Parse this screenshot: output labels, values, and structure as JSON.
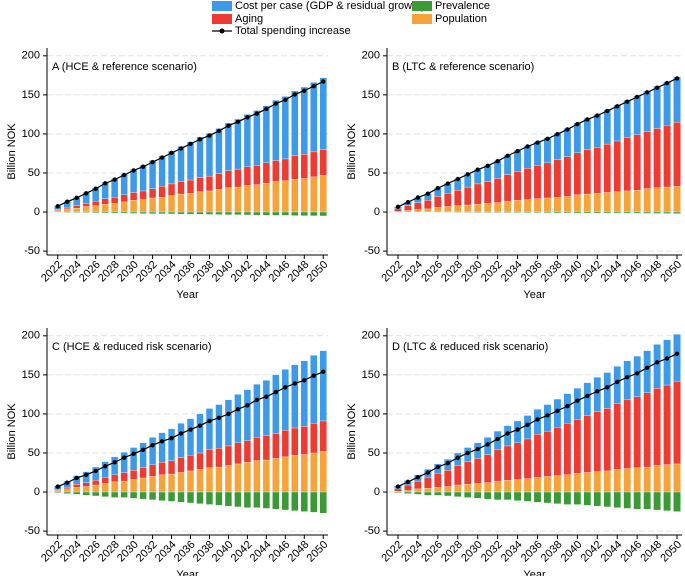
{
  "chart_data": [
    {
      "type": "bar",
      "stacked": true,
      "title": "A (HCE & reference scenario)",
      "xlabel": "Year",
      "ylabel": "Billion NOK",
      "categories": [
        "2022",
        null,
        "2024",
        null,
        "2026",
        null,
        "2028",
        null,
        "2030",
        null,
        "2032",
        null,
        "2034",
        null,
        "2036",
        null,
        "2038",
        null,
        "2040",
        null,
        "2042",
        null,
        "2044",
        null,
        "2046",
        null,
        "2048",
        null,
        "2050"
      ],
      "ylim": [
        -55,
        210
      ],
      "yticks": [
        -50,
        0,
        50,
        100,
        150,
        200
      ],
      "grid": true,
      "series": [
        {
          "name": "Cost per case (GDP & residual growth)",
          "color": "#3d9ae8",
          "values": [
            5,
            8,
            11,
            14,
            17,
            21,
            24,
            27,
            30,
            33,
            36,
            39,
            42,
            45,
            49,
            52,
            55,
            58,
            61,
            64,
            67,
            70,
            73,
            77,
            80,
            83,
            86,
            89,
            92
          ]
        },
        {
          "name": "Prevalence",
          "color": "#3a9a35",
          "values": [
            -0.5,
            -0.7,
            -0.8,
            -1,
            -1.2,
            -1.3,
            -1.5,
            -1.6,
            -1.8,
            -2,
            -2.1,
            -2.3,
            -2.4,
            -2.6,
            -2.8,
            -2.9,
            -3.1,
            -3.2,
            -3.4,
            -3.5,
            -3.7,
            -3.9,
            -4,
            -4.2,
            -4.3,
            -4.5,
            -4.7,
            -4.8,
            -5
          ]
        },
        {
          "name": "Aging",
          "color": "#ee3b31",
          "values": [
            1,
            2,
            3,
            4,
            6,
            7,
            8,
            9,
            10,
            11,
            12,
            14,
            15,
            16,
            17,
            18,
            19,
            20,
            22,
            23,
            24,
            25,
            26,
            27,
            28,
            30,
            31,
            32,
            33
          ]
        },
        {
          "name": "Population",
          "color": "#f8a23a",
          "values": [
            2,
            4,
            5,
            7,
            8,
            10,
            11,
            13,
            15,
            16,
            18,
            19,
            21,
            23,
            24,
            26,
            27,
            29,
            31,
            32,
            34,
            35,
            37,
            39,
            40,
            42,
            43,
            45,
            47
          ]
        },
        {
          "name": "Total spending increase",
          "type": "line",
          "color": "#000000",
          "values": [
            7.5,
            13.3,
            18.2,
            24,
            29.8,
            36.7,
            41.5,
            47.4,
            53.2,
            58,
            63.9,
            69.7,
            75.6,
            81.4,
            87.2,
            93.1,
            97.9,
            103.8,
            110.6,
            115.5,
            121.3,
            126.1,
            132,
            138.8,
            143.7,
            150.5,
            155.3,
            161.2,
            167
          ]
        }
      ]
    },
    {
      "type": "bar",
      "stacked": true,
      "title": "B (LTC & reference scenario)",
      "xlabel": "Year",
      "ylabel": "Billion NOK",
      "categories": [
        "2022",
        null,
        "2024",
        null,
        "2026",
        null,
        "2028",
        null,
        "2030",
        null,
        "2032",
        null,
        "2034",
        null,
        "2036",
        null,
        "2038",
        null,
        "2040",
        null,
        "2042",
        null,
        "2044",
        null,
        "2046",
        null,
        "2048",
        null,
        "2050"
      ],
      "ylim": [
        -55,
        210
      ],
      "yticks": [
        -50,
        0,
        50,
        100,
        150,
        200
      ],
      "grid": true,
      "series": [
        {
          "name": "Cost per case (GDP & residual growth)",
          "color": "#3d9ae8",
          "values": [
            3,
            5,
            7,
            9,
            11,
            13,
            15,
            17,
            19,
            21,
            23,
            25,
            27,
            29,
            30,
            32,
            34,
            36,
            38,
            40,
            42,
            44,
            46,
            48,
            50,
            52,
            54,
            56,
            58
          ]
        },
        {
          "name": "Prevalence",
          "color": "#3a9a35",
          "values": [
            -0.3,
            -0.4,
            -0.4,
            -0.5,
            -0.5,
            -0.6,
            -0.7,
            -0.7,
            -0.8,
            -0.8,
            -0.9,
            -1,
            -1,
            -1.1,
            -1.1,
            -1.2,
            -1.3,
            -1.3,
            -1.4,
            -1.4,
            -1.5,
            -1.6,
            -1.6,
            -1.7,
            -1.7,
            -1.8,
            -1.9,
            -1.9,
            -2
          ]
        },
        {
          "name": "Aging",
          "color": "#ee3b31",
          "values": [
            3,
            6,
            9,
            11,
            14,
            17,
            20,
            23,
            26,
            28,
            31,
            34,
            37,
            40,
            43,
            45,
            48,
            51,
            54,
            57,
            59,
            62,
            65,
            68,
            71,
            73,
            76,
            79,
            82
          ]
        },
        {
          "name": "Population",
          "color": "#f8a23a",
          "values": [
            1,
            2,
            3,
            4,
            6,
            7,
            8,
            9,
            10,
            11,
            12,
            14,
            15,
            16,
            17,
            18,
            19,
            20,
            22,
            23,
            24,
            25,
            26,
            27,
            28,
            30,
            31,
            32,
            33
          ]
        },
        {
          "name": "Total spending increase",
          "type": "line",
          "color": "#000000",
          "values": [
            6.7,
            12.6,
            18.6,
            23.5,
            30.5,
            36.4,
            42.3,
            48.3,
            54.2,
            59.2,
            65.1,
            72,
            78,
            83.9,
            88.9,
            93.8,
            99.7,
            105.7,
            112.6,
            118.6,
            123.5,
            129.4,
            135.4,
            141.3,
            147.3,
            153.2,
            159.1,
            165.1,
            171
          ]
        }
      ]
    },
    {
      "type": "bar",
      "stacked": true,
      "title": "C (HCE & reduced risk scenario)",
      "xlabel": "Year",
      "ylabel": "Billion NOK",
      "categories": [
        "2022",
        null,
        "2024",
        null,
        "2026",
        null,
        "2028",
        null,
        "2030",
        null,
        "2032",
        null,
        "2034",
        null,
        "2036",
        null,
        "2038",
        null,
        "2040",
        null,
        "2042",
        null,
        "2044",
        null,
        "2046",
        null,
        "2048",
        null,
        "2050"
      ],
      "ylim": [
        -55,
        210
      ],
      "yticks": [
        -50,
        0,
        50,
        100,
        150,
        200
      ],
      "grid": true,
      "series": [
        {
          "name": "Cost per case (GDP & residual growth)",
          "color": "#3d9ae8",
          "values": [
            5,
            8,
            11,
            14,
            17,
            20,
            23,
            26,
            29,
            32,
            35,
            38,
            41,
            44,
            47,
            50,
            53,
            56,
            59,
            62,
            65,
            68,
            71,
            75,
            78,
            81,
            84,
            87,
            90
          ]
        },
        {
          "name": "Prevalence",
          "color": "#3a9a35",
          "values": [
            -1,
            -2,
            -3,
            -4,
            -5,
            -6,
            -7,
            -7,
            -8,
            -9,
            -10,
            -11,
            -12,
            -13,
            -14,
            -15,
            -16,
            -17,
            -18,
            -19,
            -20,
            -20,
            -21,
            -22,
            -23,
            -24,
            -25,
            -26,
            -27
          ]
        },
        {
          "name": "Aging",
          "color": "#ee3b31",
          "values": [
            1,
            2,
            4,
            5,
            6,
            8,
            9,
            11,
            12,
            13,
            15,
            16,
            17,
            19,
            20,
            21,
            23,
            24,
            25,
            27,
            28,
            30,
            31,
            32,
            34,
            35,
            36,
            38,
            39
          ]
        },
        {
          "name": "Population",
          "color": "#f8a23a",
          "values": [
            2,
            4,
            6,
            7,
            9,
            11,
            13,
            14,
            16,
            18,
            20,
            22,
            23,
            25,
            27,
            29,
            31,
            32,
            34,
            36,
            38,
            40,
            41,
            43,
            45,
            47,
            48,
            50,
            52
          ]
        },
        {
          "name": "Total spending increase",
          "type": "line",
          "color": "#000000",
          "values": [
            7,
            12,
            18,
            22,
            27,
            33,
            38,
            44,
            49,
            54,
            60,
            65,
            69,
            75,
            80,
            85,
            91,
            95,
            100,
            106,
            111,
            118,
            122,
            128,
            134,
            139,
            143,
            149,
            154
          ]
        }
      ]
    },
    {
      "type": "bar",
      "stacked": true,
      "title": "D (LTC & reduced risk scenario)",
      "xlabel": "Year",
      "ylabel": "Billion NOK",
      "categories": [
        "2022",
        null,
        "2024",
        null,
        "2026",
        null,
        "2028",
        null,
        "2030",
        null,
        "2032",
        null,
        "2034",
        null,
        "2036",
        null,
        "2038",
        null,
        "2040",
        null,
        "2042",
        null,
        "2044",
        null,
        "2046",
        null,
        "2048",
        null,
        "2050"
      ],
      "ylim": [
        -55,
        210
      ],
      "yticks": [
        -50,
        0,
        50,
        100,
        150,
        200
      ],
      "grid": true,
      "series": [
        {
          "name": "Cost per case (GDP & residual growth)",
          "color": "#3d9ae8",
          "values": [
            4,
            6,
            8,
            10,
            12,
            14,
            16,
            18,
            20,
            22,
            24,
            26,
            28,
            30,
            32,
            34,
            36,
            38,
            40,
            42,
            44,
            46,
            48,
            50,
            52,
            54,
            56,
            58,
            60
          ]
        },
        {
          "name": "Prevalence",
          "color": "#3a9a35",
          "values": [
            -1,
            -2,
            -3,
            -4,
            -4,
            -5,
            -6,
            -7,
            -8,
            -9,
            -10,
            -10,
            -11,
            -12,
            -13,
            -14,
            -15,
            -16,
            -16,
            -17,
            -18,
            -19,
            -20,
            -21,
            -22,
            -22,
            -23,
            -24,
            -25
          ]
        },
        {
          "name": "Aging",
          "color": "#ee3b31",
          "values": [
            3,
            7,
            10,
            14,
            18,
            21,
            25,
            29,
            32,
            36,
            40,
            44,
            47,
            51,
            55,
            58,
            62,
            66,
            69,
            73,
            77,
            80,
            84,
            88,
            91,
            95,
            99,
            102,
            106
          ]
        },
        {
          "name": "Population",
          "color": "#f8a23a",
          "values": [
            1,
            2,
            4,
            5,
            6,
            7,
            9,
            10,
            11,
            12,
            14,
            15,
            16,
            17,
            19,
            20,
            21,
            22,
            24,
            25,
            26,
            27,
            29,
            30,
            31,
            32,
            34,
            35,
            36
          ]
        },
        {
          "name": "Total spending increase",
          "type": "line",
          "color": "#000000",
          "values": [
            7,
            13,
            19,
            25,
            32,
            37,
            44,
            50,
            55,
            61,
            68,
            75,
            80,
            86,
            93,
            98,
            104,
            110,
            117,
            123,
            129,
            134,
            141,
            147,
            152,
            159,
            166,
            171,
            177
          ]
        }
      ]
    }
  ]
}
